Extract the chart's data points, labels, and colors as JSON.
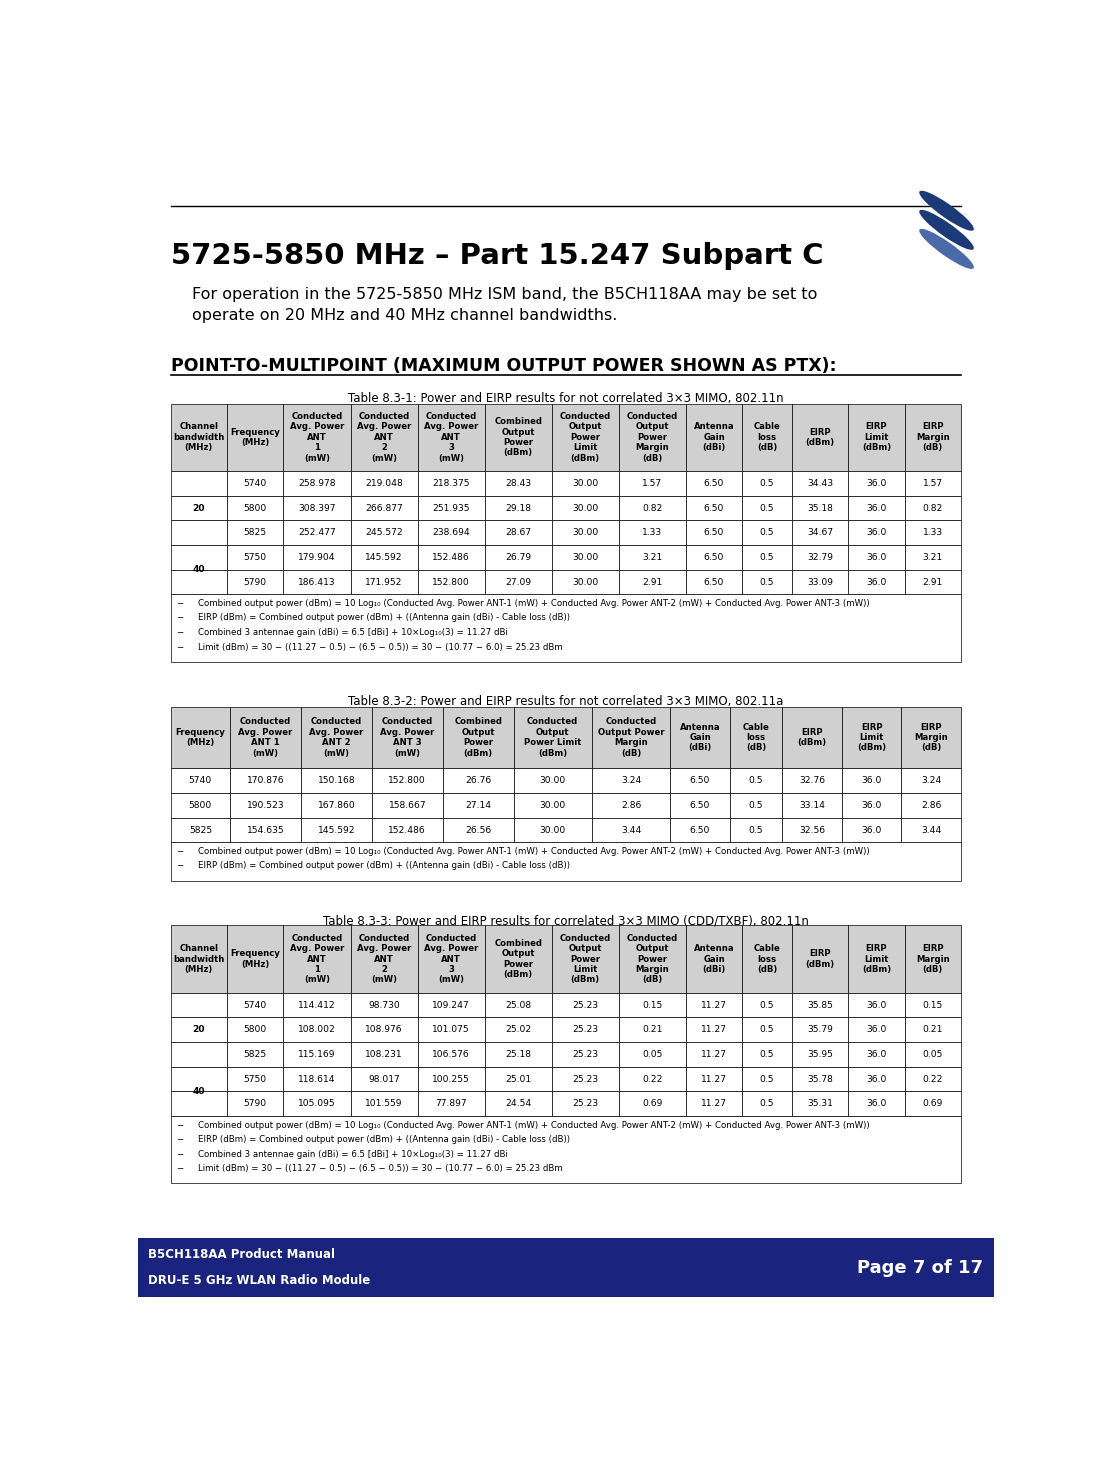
{
  "title": "5725-5850 MHz – Part 15.247 Subpart C",
  "subtitle": "For operation in the 5725-5850 MHz ISM band, the B5CH118AA may be set to\noperate on 20 MHz and 40 MHz channel bandwidths.",
  "ptmp_heading": "POINT-TO-MULTIPOINT (MAXIMUM OUTPUT POWER SHOWN AS PTX):",
  "table1_title": "Table 8.3-1: Power and EIRP results for not correlated 3×3 MIMO, 802.11n",
  "table1_headers": [
    "Channel\nbandwidth\n(MHz)",
    "Frequency\n(MHz)",
    "Conducted\nAvg. Power\nANT\n1\n(mW)",
    "Conducted\nAvg. Power\nANT\n2\n(mW)",
    "Conducted\nAvg. Power\nANT\n3\n(mW)",
    "Combined\nOutput\nPower\n(dBm)",
    "Conducted\nOutput\nPower\nLimit\n(dBm)",
    "Conducted\nOutput\nPower\nMargin\n(dB)",
    "Antenna\nGain\n(dBi)",
    "Cable\nloss\n(dB)",
    "EIRP\n(dBm)",
    "EIRP\nLimit\n(dBm)",
    "EIRP\nMargin\n(dB)"
  ],
  "table1_bw_spans": [
    [
      0,
      3
    ],
    [
      3,
      5
    ]
  ],
  "table1_bw_labels": [
    "20",
    "40"
  ],
  "table1_data": [
    [
      "5740",
      "258.978",
      "219.048",
      "218.375",
      "28.43",
      "30.00",
      "1.57",
      "6.50",
      "0.5",
      "34.43",
      "36.0",
      "1.57"
    ],
    [
      "5800",
      "308.397",
      "266.877",
      "251.935",
      "29.18",
      "30.00",
      "0.82",
      "6.50",
      "0.5",
      "35.18",
      "36.0",
      "0.82"
    ],
    [
      "5825",
      "252.477",
      "245.572",
      "238.694",
      "28.67",
      "30.00",
      "1.33",
      "6.50",
      "0.5",
      "34.67",
      "36.0",
      "1.33"
    ],
    [
      "5750",
      "179.904",
      "145.592",
      "152.486",
      "26.79",
      "30.00",
      "3.21",
      "6.50",
      "0.5",
      "32.79",
      "36.0",
      "3.21"
    ],
    [
      "5790",
      "186.413",
      "171.952",
      "152.800",
      "27.09",
      "30.00",
      "2.91",
      "6.50",
      "0.5",
      "33.09",
      "36.0",
      "2.91"
    ]
  ],
  "table1_notes": [
    "−     Combined output power (dBm) = 10 Log₁₀ (Conducted Avg. Power ANT-1 (mW) + Conducted Avg. Power ANT-2 (mW) + Conducted Avg. Power ANT-3 (mW))",
    "−     EIRP (dBm) = Combined output power (dBm) + ((Antenna gain (dBi) - Cable loss (dB))",
    "−     Combined 3 antennae gain (dBi) = 6.5 [dBi] + 10×Log₁₀(3) = 11.27 dBi",
    "−     Limit (dBm) = 30 − ((11.27 − 0.5) − (6.5 − 0.5)) = 30 − (10.77 − 6.0) = 25.23 dBm"
  ],
  "table2_title": "Table 8.3-2: Power and EIRP results for not correlated 3×3 MIMO, 802.11a",
  "table2_headers": [
    "Frequency\n(MHz)",
    "Conducted\nAvg. Power\nANT 1\n(mW)",
    "Conducted\nAvg. Power\nANT 2\n(mW)",
    "Conducted\nAvg. Power\nANT 3\n(mW)",
    "Combined\nOutput\nPower\n(dBm)",
    "Conducted\nOutput\nPower Limit\n(dBm)",
    "Conducted\nOutput Power\nMargin\n(dB)",
    "Antenna\nGain\n(dBi)",
    "Cable\nloss\n(dB)",
    "EIRP\n(dBm)",
    "EIRP\nLimit\n(dBm)",
    "EIRP\nMargin\n(dB)"
  ],
  "table2_data": [
    [
      "5740",
      "170.876",
      "150.168",
      "152.800",
      "26.76",
      "30.00",
      "3.24",
      "6.50",
      "0.5",
      "32.76",
      "36.0",
      "3.24"
    ],
    [
      "5800",
      "190.523",
      "167.860",
      "158.667",
      "27.14",
      "30.00",
      "2.86",
      "6.50",
      "0.5",
      "33.14",
      "36.0",
      "2.86"
    ],
    [
      "5825",
      "154.635",
      "145.592",
      "152.486",
      "26.56",
      "30.00",
      "3.44",
      "6.50",
      "0.5",
      "32.56",
      "36.0",
      "3.44"
    ]
  ],
  "table2_notes": [
    "−     Combined output power (dBm) = 10 Log₁₀ (Conducted Avg. Power ANT-1 (mW) + Conducted Avg. Power ANT-2 (mW) + Conducted Avg. Power ANT-3 (mW))",
    "−     EIRP (dBm) = Combined output power (dBm) + ((Antenna gain (dBi) - Cable loss (dB))"
  ],
  "table3_title": "Table 8.3-3: Power and EIRP results for correlated 3×3 MIMO (CDD/TXBF), 802.11n",
  "table3_headers": [
    "Channel\nbandwidth\n(MHz)",
    "Frequency\n(MHz)",
    "Conducted\nAvg. Power\nANT\n1\n(mW)",
    "Conducted\nAvg. Power\nANT\n2\n(mW)",
    "Conducted\nAvg. Power\nANT\n3\n(mW)",
    "Combined\nOutput\nPower\n(dBm)",
    "Conducted\nOutput\nPower\nLimit\n(dBm)",
    "Conducted\nOutput\nPower\nMargin\n(dB)",
    "Antenna\nGain\n(dBi)",
    "Cable\nloss\n(dB)",
    "EIRP\n(dBm)",
    "EIRP\nLimit\n(dBm)",
    "EIRP\nMargin\n(dB)"
  ],
  "table3_bw_spans": [
    [
      0,
      3
    ],
    [
      3,
      5
    ]
  ],
  "table3_bw_labels": [
    "20",
    "40"
  ],
  "table3_data": [
    [
      "5740",
      "114.412",
      "98.730",
      "109.247",
      "25.08",
      "25.23",
      "0.15",
      "11.27",
      "0.5",
      "35.85",
      "36.0",
      "0.15"
    ],
    [
      "5800",
      "108.002",
      "108.976",
      "101.075",
      "25.02",
      "25.23",
      "0.21",
      "11.27",
      "0.5",
      "35.79",
      "36.0",
      "0.21"
    ],
    [
      "5825",
      "115.169",
      "108.231",
      "106.576",
      "25.18",
      "25.23",
      "0.05",
      "11.27",
      "0.5",
      "35.95",
      "36.0",
      "0.05"
    ],
    [
      "5750",
      "118.614",
      "98.017",
      "100.255",
      "25.01",
      "25.23",
      "0.22",
      "11.27",
      "0.5",
      "35.78",
      "36.0",
      "0.22"
    ],
    [
      "5790",
      "105.095",
      "101.559",
      "77.897",
      "24.54",
      "25.23",
      "0.69",
      "11.27",
      "0.5",
      "35.31",
      "36.0",
      "0.69"
    ]
  ],
  "table3_notes": [
    "−     Combined output power (dBm) = 10 Log₁₀ (Conducted Avg. Power ANT-1 (mW) + Conducted Avg. Power ANT-2 (mW) + Conducted Avg. Power ANT-3 (mW))",
    "−     EIRP (dBm) = Combined output power (dBm) + ((Antenna gain (dBi) - Cable loss (dB))",
    "−     Combined 3 antennae gain (dBi) = 6.5 [dBi] + 10×Log₁₀(3) = 11.27 dBi",
    "−     Limit (dBm) = 30 − ((11.27 − 0.5) − (6.5 − 0.5)) = 30 − (10.77 − 6.0) = 25.23 dBm"
  ],
  "footer_left1": "B5CH118AA Product Manual",
  "footer_left2": "DRU-E 5 GHz WLAN Radio Module",
  "footer_right": "Page 7 of 17",
  "table_header_bg": "#d0d0d0",
  "footer_bg": "#1a237e",
  "footer_text_color": "#ffffff"
}
